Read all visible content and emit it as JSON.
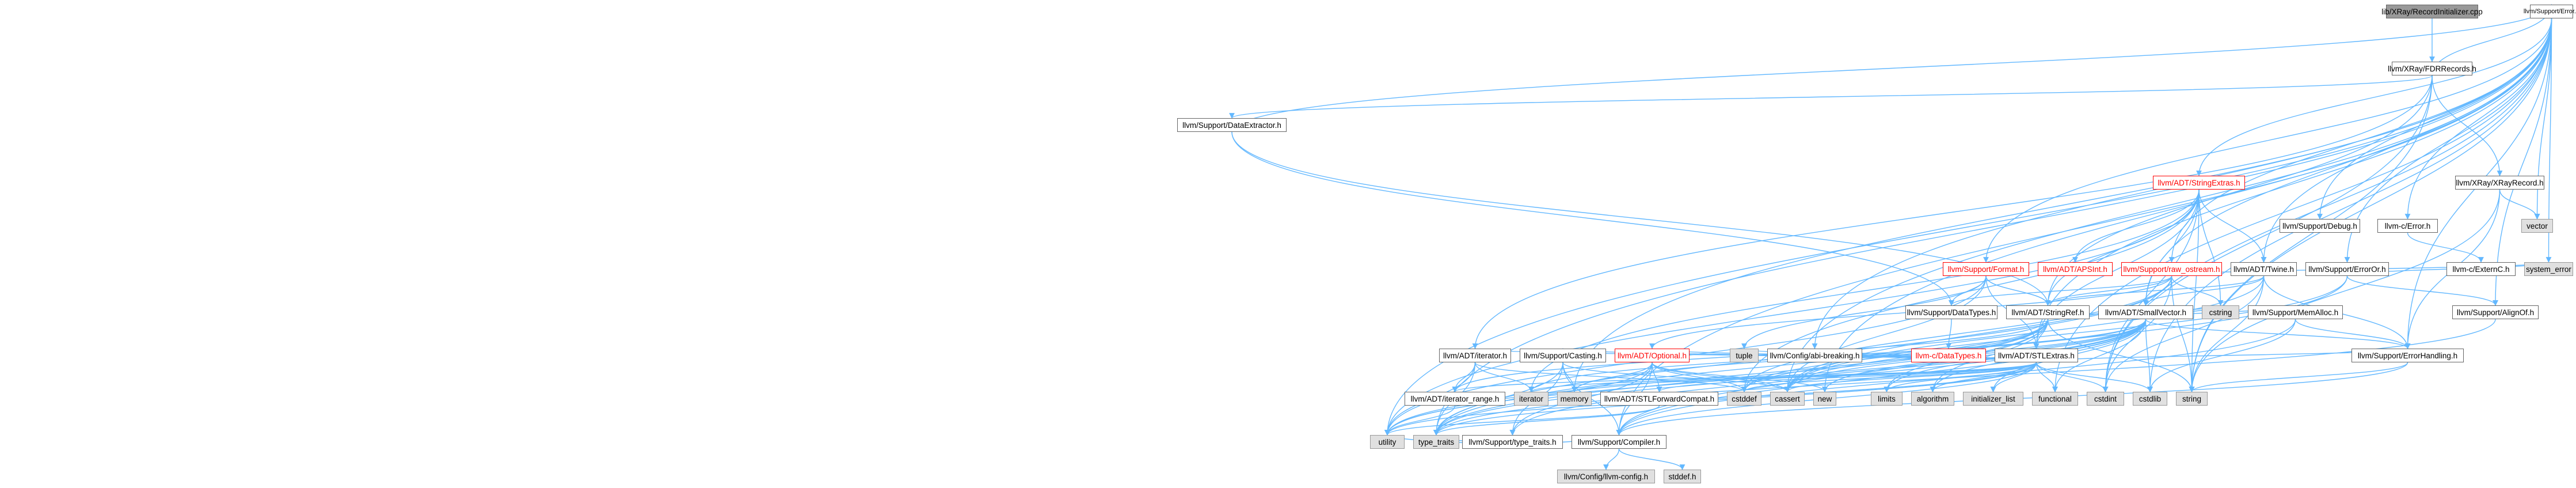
{
  "nodes": [
    {
      "id": "root",
      "label": "lib/XRay/RecordInitializer.cpp",
      "kind": "root"
    },
    {
      "id": "fdr",
      "label": "llvm/XRay/FDRRecords.h",
      "kind": "normal"
    },
    {
      "id": "dataext",
      "label": "llvm/Support/DataExtractor.h",
      "kind": "normal"
    },
    {
      "id": "xrayrec",
      "label": "llvm/XRay/XRayRecord.h",
      "kind": "normal"
    },
    {
      "id": "error",
      "label": "llvm/Support/Error.h",
      "kind": "normal"
    },
    {
      "id": "vector",
      "label": "vector",
      "kind": "sys"
    },
    {
      "id": "stringextras",
      "label": "llvm/ADT/StringExtras.h",
      "kind": "red"
    },
    {
      "id": "debug",
      "label": "llvm/Support/Debug.h",
      "kind": "normal"
    },
    {
      "id": "cerror",
      "label": "llvm-c/Error.h",
      "kind": "normal"
    },
    {
      "id": "cexternc",
      "label": "llvm-c/ExternC.h",
      "kind": "normal"
    },
    {
      "id": "format",
      "label": "llvm/Support/Format.h",
      "kind": "red"
    },
    {
      "id": "apsint",
      "label": "llvm/ADT/APSInt.h",
      "kind": "red"
    },
    {
      "id": "rawostream",
      "label": "llvm/Support/raw_ostream.h",
      "kind": "red"
    },
    {
      "id": "twine",
      "label": "llvm/ADT/Twine.h",
      "kind": "normal"
    },
    {
      "id": "erroror",
      "label": "llvm/Support/ErrorOr.h",
      "kind": "normal"
    },
    {
      "id": "systemerror",
      "label": "system_error",
      "kind": "sys"
    },
    {
      "id": "alignof",
      "label": "llvm/Support/AlignOf.h",
      "kind": "normal"
    },
    {
      "id": "datatypes",
      "label": "llvm/Support/DataTypes.h",
      "kind": "normal"
    },
    {
      "id": "stringref",
      "label": "llvm/ADT/StringRef.h",
      "kind": "normal"
    },
    {
      "id": "smallvector",
      "label": "llvm/ADT/SmallVector.h",
      "kind": "normal"
    },
    {
      "id": "cdatatypes",
      "label": "llvm-c/DataTypes.h",
      "kind": "red"
    },
    {
      "id": "cstring",
      "label": "cstring",
      "kind": "sys"
    },
    {
      "id": "stlextras",
      "label": "llvm/ADT/STLExtras.h",
      "kind": "normal"
    },
    {
      "id": "memalloc",
      "label": "llvm/Support/MemAlloc.h",
      "kind": "normal"
    },
    {
      "id": "errorhandling",
      "label": "llvm/Support/ErrorHandling.h",
      "kind": "normal"
    },
    {
      "id": "tuple",
      "label": "tuple",
      "kind": "sys"
    },
    {
      "id": "abibreaking",
      "label": "llvm/Config/abi-breaking.h",
      "kind": "normal"
    },
    {
      "id": "iterator",
      "label": "llvm/ADT/iterator.h",
      "kind": "normal"
    },
    {
      "id": "casting",
      "label": "llvm/Support/Casting.h",
      "kind": "normal"
    },
    {
      "id": "optional",
      "label": "llvm/ADT/Optional.h",
      "kind": "red"
    },
    {
      "id": "limits",
      "label": "limits",
      "kind": "sys"
    },
    {
      "id": "algorithm",
      "label": "algorithm",
      "kind": "sys"
    },
    {
      "id": "initlist",
      "label": "initializer_list",
      "kind": "sys"
    },
    {
      "id": "functional",
      "label": "functional",
      "kind": "sys"
    },
    {
      "id": "cstdint",
      "label": "cstdint",
      "kind": "sys"
    },
    {
      "id": "cstdlib",
      "label": "cstdlib",
      "kind": "sys"
    },
    {
      "id": "iteratorrange",
      "label": "llvm/ADT/iterator_range.h",
      "kind": "normal"
    },
    {
      "id": "iteratorstd",
      "label": "iterator",
      "kind": "sys"
    },
    {
      "id": "memory",
      "label": "memory",
      "kind": "sys"
    },
    {
      "id": "stlfwd",
      "label": "llvm/ADT/STLForwardCompat.h",
      "kind": "normal"
    },
    {
      "id": "cstddef",
      "label": "cstddef",
      "kind": "sys"
    },
    {
      "id": "cassert",
      "label": "cassert",
      "kind": "sys"
    },
    {
      "id": "new",
      "label": "new",
      "kind": "sys"
    },
    {
      "id": "string",
      "label": "string",
      "kind": "sys"
    },
    {
      "id": "typetraitsllvm",
      "label": "llvm/Support/type_traits.h",
      "kind": "normal"
    },
    {
      "id": "utility",
      "label": "utility",
      "kind": "sys"
    },
    {
      "id": "typetraits",
      "label": "type_traits",
      "kind": "sys"
    },
    {
      "id": "compiler",
      "label": "llvm/Support/Compiler.h",
      "kind": "normal"
    },
    {
      "id": "llvmconfig",
      "label": "llvm/Config/llvm-config.h",
      "kind": "sys"
    },
    {
      "id": "stddef",
      "label": "stddef.h",
      "kind": "sys"
    }
  ],
  "colors": {
    "edge": "#63b8ff",
    "red_text": "#ff0000",
    "sys_fill": "#e0e0e0",
    "root_fill": "#999999"
  }
}
